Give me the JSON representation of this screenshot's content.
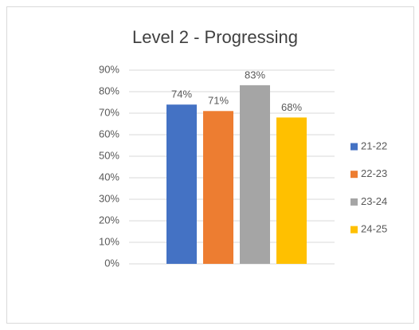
{
  "chart_data": {
    "type": "bar",
    "title": "Level 2 - Progressing",
    "categories": [
      null
    ],
    "series": [
      {
        "name": "21-22",
        "color": "#4472c4",
        "values": [
          74
        ],
        "value_labels": [
          "74%"
        ]
      },
      {
        "name": "22-23",
        "color": "#ed7d31",
        "values": [
          71
        ],
        "value_labels": [
          "71%"
        ]
      },
      {
        "name": "23-24",
        "color": "#a5a5a5",
        "values": [
          83
        ],
        "value_labels": [
          "83%"
        ]
      },
      {
        "name": "24-25",
        "color": "#ffc000",
        "values": [
          68
        ],
        "value_labels": [
          "68%"
        ]
      }
    ],
    "ylim": [
      0,
      90
    ],
    "yticks": [
      {
        "value": 0,
        "label": "0%"
      },
      {
        "value": 10,
        "label": "10%"
      },
      {
        "value": 20,
        "label": "20%"
      },
      {
        "value": 30,
        "label": "30%"
      },
      {
        "value": 40,
        "label": "40%"
      },
      {
        "value": 50,
        "label": "50%"
      },
      {
        "value": 60,
        "label": "60%"
      },
      {
        "value": 70,
        "label": "70%"
      },
      {
        "value": 80,
        "label": "80%"
      },
      {
        "value": 90,
        "label": "90%"
      }
    ],
    "grid": true,
    "legend": "right"
  }
}
